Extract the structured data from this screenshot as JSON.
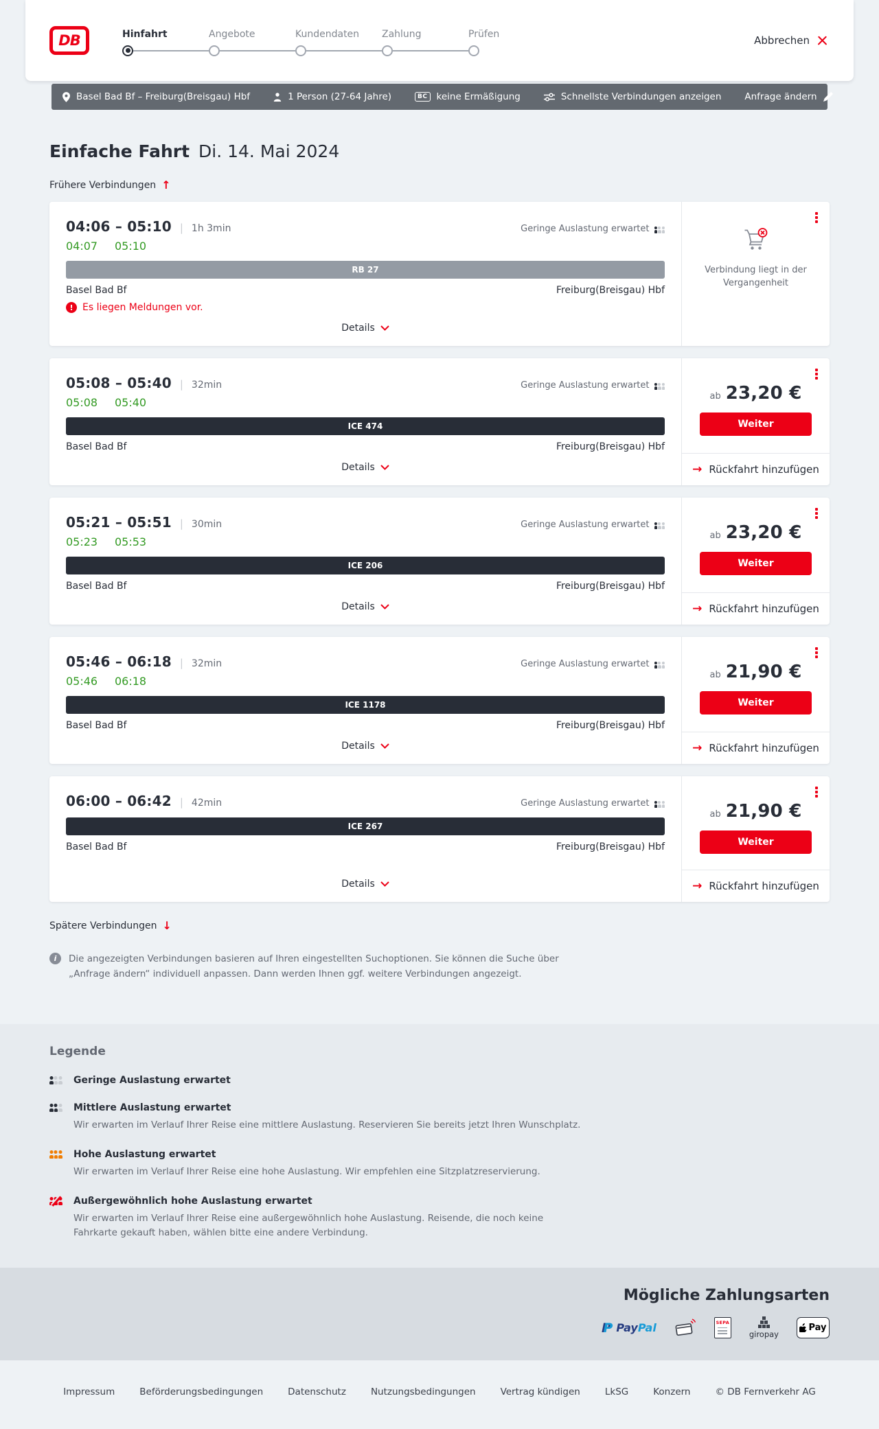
{
  "header": {
    "logo_text": "DB",
    "cancel_label": "Abbrechen",
    "steps": [
      {
        "label": "Hinfahrt",
        "active": true
      },
      {
        "label": "Angebote",
        "active": false
      },
      {
        "label": "Kundendaten",
        "active": false
      },
      {
        "label": "Zahlung",
        "active": false
      },
      {
        "label": "Prüfen",
        "active": false
      }
    ]
  },
  "query_bar": {
    "route": "Basel Bad Bf – Freiburg(Breisgau) Hbf",
    "passengers": "1 Person (27-64 Jahre)",
    "bahncard_badge": "BC",
    "discount": "keine Ermäßigung",
    "fastest_label": "Schnellste Verbindungen anzeigen",
    "change_label": "Anfrage ändern"
  },
  "page": {
    "title": "Einfache Fahrt",
    "date": "Di. 14. Mai 2024",
    "earlier_label": "Frühere Verbindungen",
    "later_label": "Spätere Verbindungen",
    "info_text": "Die angezeigten Verbindungen basieren auf Ihren eingestellten Suchoptionen. Sie können die Suche über „Anfrage ändern“ individuell anpassen. Dann werden Ihnen ggf. weitere Verbindungen angezeigt."
  },
  "connections": [
    {
      "depart": "04:06",
      "arrive": "05:10",
      "duration": "1h 3min",
      "rt_depart": "04:07",
      "rt_arrive": "05:10",
      "train": "RB 27",
      "train_style": "regional",
      "from": "Basel Bad Bf",
      "to": "Freiburg(Breisgau) Hbf",
      "occupancy": "Geringe Auslastung erwartet",
      "occupancy_level": "low",
      "warning": "Es liegen Meldungen vor.",
      "details_label": "Details",
      "action": {
        "type": "past",
        "text": "Verbindung liegt in der Vergangenheit"
      }
    },
    {
      "depart": "05:08",
      "arrive": "05:40",
      "duration": "32min",
      "rt_depart": "05:08",
      "rt_arrive": "05:40",
      "train": "ICE 474",
      "train_style": "longdistance",
      "from": "Basel Bad Bf",
      "to": "Freiburg(Breisgau) Hbf",
      "occupancy": "Geringe Auslastung erwartet",
      "occupancy_level": "low",
      "details_label": "Details",
      "action": {
        "type": "price",
        "prefix": "ab",
        "price": "23,20 €",
        "button_label": "Weiter",
        "return_label": "Rückfahrt hinzufügen"
      }
    },
    {
      "depart": "05:21",
      "arrive": "05:51",
      "duration": "30min",
      "rt_depart": "05:23",
      "rt_arrive": "05:53",
      "train": "ICE 206",
      "train_style": "longdistance",
      "from": "Basel Bad Bf",
      "to": "Freiburg(Breisgau) Hbf",
      "occupancy": "Geringe Auslastung erwartet",
      "occupancy_level": "low",
      "details_label": "Details",
      "action": {
        "type": "price",
        "prefix": "ab",
        "price": "23,20 €",
        "button_label": "Weiter",
        "return_label": "Rückfahrt hinzufügen"
      }
    },
    {
      "depart": "05:46",
      "arrive": "06:18",
      "duration": "32min",
      "rt_depart": "05:46",
      "rt_arrive": "06:18",
      "train": "ICE 1178",
      "train_style": "longdistance",
      "from": "Basel Bad Bf",
      "to": "Freiburg(Breisgau) Hbf",
      "occupancy": "Geringe Auslastung erwartet",
      "occupancy_level": "low",
      "details_label": "Details",
      "action": {
        "type": "price",
        "prefix": "ab",
        "price": "21,90 €",
        "button_label": "Weiter",
        "return_label": "Rückfahrt hinzufügen"
      }
    },
    {
      "depart": "06:00",
      "arrive": "06:42",
      "duration": "42min",
      "train": "ICE 267",
      "train_style": "longdistance",
      "from": "Basel Bad Bf",
      "to": "Freiburg(Breisgau) Hbf",
      "occupancy": "Geringe Auslastung erwartet",
      "occupancy_level": "low",
      "details_label": "Details",
      "action": {
        "type": "price",
        "prefix": "ab",
        "price": "21,90 €",
        "button_label": "Weiter",
        "return_label": "Rückfahrt hinzufügen"
      }
    }
  ],
  "legend": {
    "title": "Legende",
    "items": [
      {
        "icon": "low",
        "label": "Geringe Auslastung erwartet",
        "description": ""
      },
      {
        "icon": "medium",
        "label": "Mittlere Auslastung erwartet",
        "description": "Wir erwarten im Verlauf Ihrer Reise eine mittlere Auslastung. Reservieren Sie bereits jetzt Ihren Wunschplatz."
      },
      {
        "icon": "high",
        "label": "Hohe Auslastung erwartet",
        "description": "Wir erwarten im Verlauf Ihrer Reise eine hohe Auslastung. Wir empfehlen eine Sitzplatzreservierung."
      },
      {
        "icon": "exceptional",
        "label": "Außergewöhnlich hohe Auslastung erwartet",
        "description": "Wir erwarten im Verlauf Ihrer Reise eine außergewöhnlich hohe Auslastung. Reisende, die noch keine Fahrkarte gekauft haben, wählen bitte eine andere Verbindung."
      }
    ]
  },
  "payment": {
    "title": "Mögliche Zahlungsarten",
    "paypal_label": "PayPal",
    "sepa_label": "SEPA",
    "giropay_label": "giropay",
    "applepay_label": "Pay"
  },
  "footer": {
    "links": [
      "Impressum",
      "Beförderungsbedingungen",
      "Datenschutz",
      "Nutzungsbedingungen",
      "Vertrag kündigen",
      "LkSG",
      "Konzern"
    ],
    "copyright": "© DB Fernverkehr AG"
  }
}
